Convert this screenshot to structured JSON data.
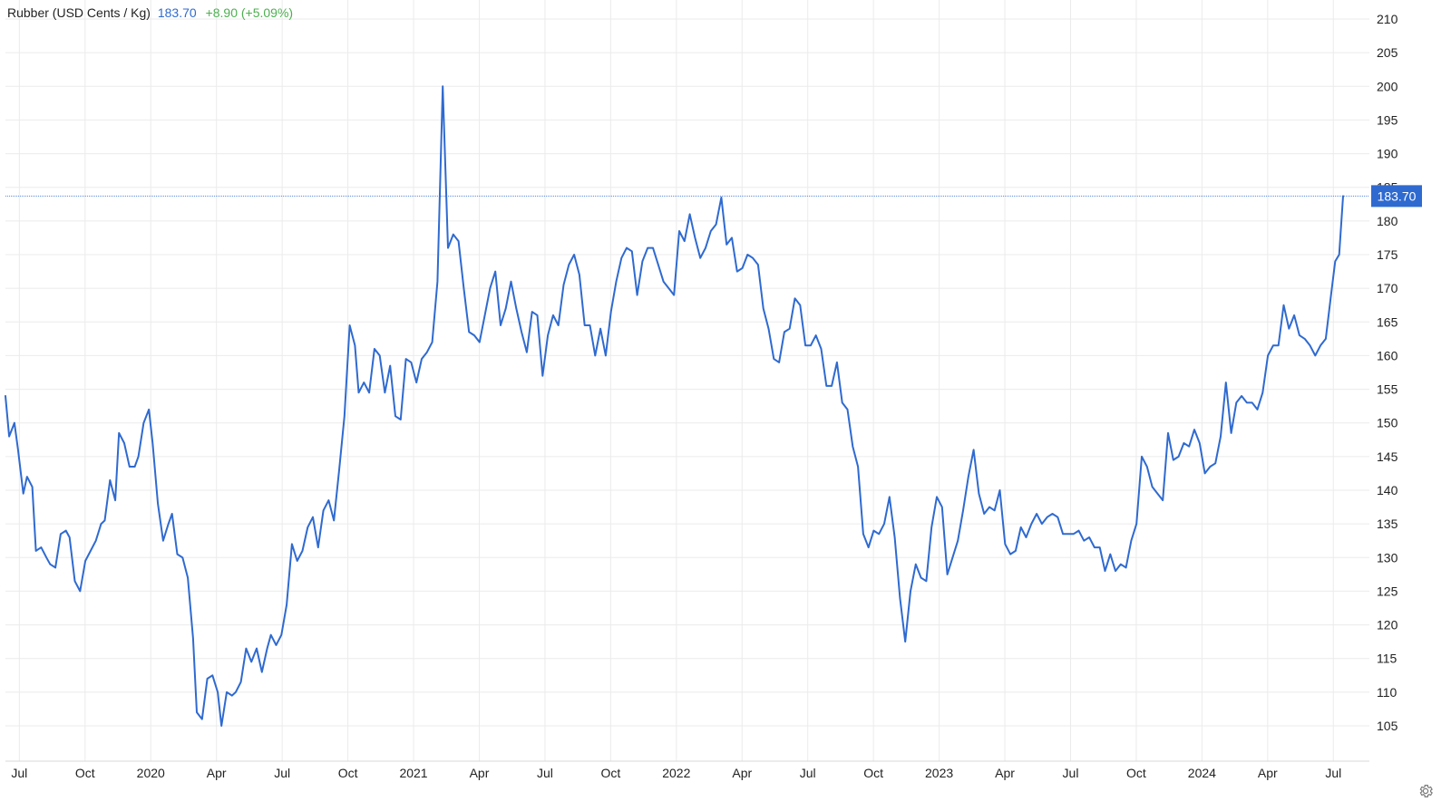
{
  "header": {
    "name": "Rubber (USD Cents / Kg)",
    "price": "183.70",
    "change": "+8.90 (+5.09%)"
  },
  "colors": {
    "line": "#2f6ad0",
    "grid": "#ebebeb",
    "label_bg": "#2f6ad0",
    "change_positive": "#4caf50",
    "axis_text": "#222222"
  },
  "chart_data": {
    "type": "line",
    "title": "Rubber (USD Cents / Kg)",
    "xlabel": "",
    "ylabel": "",
    "ylim": [
      100,
      212
    ],
    "y_ticks": [
      105,
      110,
      115,
      120,
      125,
      130,
      135,
      140,
      145,
      150,
      155,
      160,
      165,
      170,
      175,
      180,
      185,
      190,
      195,
      200,
      205,
      210
    ],
    "x_ticks": [
      {
        "label": "Jul",
        "t": 2019.5
      },
      {
        "label": "Oct",
        "t": 2019.75
      },
      {
        "label": "2020",
        "t": 2020.0
      },
      {
        "label": "Apr",
        "t": 2020.25
      },
      {
        "label": "Jul",
        "t": 2020.5
      },
      {
        "label": "Oct",
        "t": 2020.75
      },
      {
        "label": "2021",
        "t": 2021.0
      },
      {
        "label": "Apr",
        "t": 2021.25
      },
      {
        "label": "Jul",
        "t": 2021.5
      },
      {
        "label": "Oct",
        "t": 2021.75
      },
      {
        "label": "2022",
        "t": 2022.0
      },
      {
        "label": "Apr",
        "t": 2022.25
      },
      {
        "label": "Jul",
        "t": 2022.5
      },
      {
        "label": "Oct",
        "t": 2022.75
      },
      {
        "label": "2023",
        "t": 2023.0
      },
      {
        "label": "Apr",
        "t": 2023.25
      },
      {
        "label": "Jul",
        "t": 2023.5
      },
      {
        "label": "Oct",
        "t": 2023.75
      },
      {
        "label": "2024",
        "t": 2024.0
      },
      {
        "label": "Apr",
        "t": 2024.25
      },
      {
        "label": "Jul",
        "t": 2024.5
      }
    ],
    "xlim": [
      2019.447,
      2024.537
    ],
    "last_value": 183.7,
    "last_value_label": "183.70",
    "grid": true,
    "series": [
      {
        "color": "#2f6ad0",
        "points": [
          [
            2019.447,
            154.0
          ],
          [
            2019.461,
            148.0
          ],
          [
            2019.481,
            150.0
          ],
          [
            2019.495,
            146.0
          ],
          [
            2019.515,
            139.5
          ],
          [
            2019.529,
            142.0
          ],
          [
            2019.549,
            140.5
          ],
          [
            2019.563,
            131.0
          ],
          [
            2019.583,
            131.5
          ],
          [
            2019.603,
            130.0
          ],
          [
            2019.617,
            129.0
          ],
          [
            2019.637,
            128.5
          ],
          [
            2019.657,
            133.5
          ],
          [
            2019.677,
            134.0
          ],
          [
            2019.691,
            133.0
          ],
          [
            2019.711,
            126.5
          ],
          [
            2019.731,
            125.0
          ],
          [
            2019.751,
            129.5
          ],
          [
            2019.771,
            131.0
          ],
          [
            2019.791,
            132.5
          ],
          [
            2019.811,
            135.0
          ],
          [
            2019.825,
            135.5
          ],
          [
            2019.845,
            141.5
          ],
          [
            2019.865,
            138.5
          ],
          [
            2019.879,
            148.5
          ],
          [
            2019.899,
            147.0
          ],
          [
            2019.919,
            143.5
          ],
          [
            2019.939,
            143.5
          ],
          [
            2019.953,
            145.0
          ],
          [
            2019.973,
            150.0
          ],
          [
            2019.993,
            152.0
          ],
          [
            2020.007,
            147.0
          ],
          [
            2020.027,
            138.0
          ],
          [
            2020.047,
            132.5
          ],
          [
            2020.067,
            135.0
          ],
          [
            2020.081,
            136.5
          ],
          [
            2020.101,
            130.5
          ],
          [
            2020.121,
            130.0
          ],
          [
            2020.141,
            127.0
          ],
          [
            2020.161,
            118.0
          ],
          [
            2020.175,
            107.0
          ],
          [
            2020.195,
            106.0
          ],
          [
            2020.215,
            112.0
          ],
          [
            2020.235,
            112.5
          ],
          [
            2020.255,
            110.0
          ],
          [
            2020.269,
            105.0
          ],
          [
            2020.289,
            110.0
          ],
          [
            2020.309,
            109.5
          ],
          [
            2020.323,
            110.0
          ],
          [
            2020.343,
            111.5
          ],
          [
            2020.363,
            116.5
          ],
          [
            2020.383,
            114.5
          ],
          [
            2020.403,
            116.5
          ],
          [
            2020.423,
            113.0
          ],
          [
            2020.443,
            116.5
          ],
          [
            2020.457,
            118.5
          ],
          [
            2020.477,
            117.0
          ],
          [
            2020.497,
            118.5
          ],
          [
            2020.517,
            123.0
          ],
          [
            2020.537,
            132.0
          ],
          [
            2020.557,
            129.5
          ],
          [
            2020.577,
            131.0
          ],
          [
            2020.597,
            134.5
          ],
          [
            2020.617,
            136.0
          ],
          [
            2020.637,
            131.5
          ],
          [
            2020.657,
            137.0
          ],
          [
            2020.677,
            138.5
          ],
          [
            2020.697,
            135.5
          ],
          [
            2020.717,
            143.0
          ],
          [
            2020.737,
            151.0
          ],
          [
            2020.757,
            164.5
          ],
          [
            2020.777,
            161.5
          ],
          [
            2020.791,
            154.5
          ],
          [
            2020.811,
            156.0
          ],
          [
            2020.831,
            154.5
          ],
          [
            2020.851,
            161.0
          ],
          [
            2020.871,
            160.0
          ],
          [
            2020.891,
            154.5
          ],
          [
            2020.911,
            158.5
          ],
          [
            2020.931,
            151.0
          ],
          [
            2020.951,
            150.5
          ],
          [
            2020.971,
            159.5
          ],
          [
            2020.991,
            159.0
          ],
          [
            2021.011,
            156.0
          ],
          [
            2021.031,
            159.5
          ],
          [
            2021.051,
            160.5
          ],
          [
            2021.071,
            162.0
          ],
          [
            2021.091,
            171.0
          ],
          [
            2021.111,
            200.0
          ],
          [
            2021.131,
            176.0
          ],
          [
            2021.151,
            178.0
          ],
          [
            2021.171,
            177.0
          ],
          [
            2021.191,
            170.0
          ],
          [
            2021.211,
            163.5
          ],
          [
            2021.231,
            163.0
          ],
          [
            2021.251,
            162.0
          ],
          [
            2021.271,
            166.0
          ],
          [
            2021.291,
            170.0
          ],
          [
            2021.311,
            172.5
          ],
          [
            2021.331,
            164.5
          ],
          [
            2021.351,
            167.0
          ],
          [
            2021.371,
            171.0
          ],
          [
            2021.391,
            167.0
          ],
          [
            2021.411,
            163.5
          ],
          [
            2021.431,
            160.5
          ],
          [
            2021.451,
            166.5
          ],
          [
            2021.471,
            166.0
          ],
          [
            2021.491,
            157.0
          ],
          [
            2021.511,
            163.0
          ],
          [
            2021.531,
            166.0
          ],
          [
            2021.551,
            164.5
          ],
          [
            2021.571,
            170.5
          ],
          [
            2021.591,
            173.5
          ],
          [
            2021.611,
            175.0
          ],
          [
            2021.631,
            172.0
          ],
          [
            2021.651,
            164.5
          ],
          [
            2021.671,
            164.5
          ],
          [
            2021.691,
            160.0
          ],
          [
            2021.711,
            164.0
          ],
          [
            2021.731,
            160.0
          ],
          [
            2021.751,
            166.5
          ],
          [
            2021.771,
            171.0
          ],
          [
            2021.791,
            174.5
          ],
          [
            2021.811,
            176.0
          ],
          [
            2021.831,
            175.5
          ],
          [
            2021.851,
            169.0
          ],
          [
            2021.871,
            174.0
          ],
          [
            2021.891,
            176.0
          ],
          [
            2021.911,
            176.0
          ],
          [
            2021.931,
            173.5
          ],
          [
            2021.951,
            171.0
          ],
          [
            2021.971,
            170.0
          ],
          [
            2021.991,
            169.0
          ],
          [
            2022.011,
            178.5
          ],
          [
            2022.031,
            177.0
          ],
          [
            2022.051,
            181.0
          ],
          [
            2022.071,
            177.5
          ],
          [
            2022.091,
            174.5
          ],
          [
            2022.111,
            176.0
          ],
          [
            2022.131,
            178.5
          ],
          [
            2022.151,
            179.5
          ],
          [
            2022.171,
            183.5
          ],
          [
            2022.191,
            176.5
          ],
          [
            2022.211,
            177.5
          ],
          [
            2022.231,
            172.5
          ],
          [
            2022.251,
            173.0
          ],
          [
            2022.271,
            175.0
          ],
          [
            2022.291,
            174.5
          ],
          [
            2022.311,
            173.5
          ],
          [
            2022.331,
            167.0
          ],
          [
            2022.351,
            164.0
          ],
          [
            2022.371,
            159.5
          ],
          [
            2022.391,
            159.0
          ],
          [
            2022.411,
            163.5
          ],
          [
            2022.431,
            164.0
          ],
          [
            2022.451,
            168.5
          ],
          [
            2022.471,
            167.5
          ],
          [
            2022.491,
            161.5
          ],
          [
            2022.511,
            161.5
          ],
          [
            2022.531,
            163.0
          ],
          [
            2022.551,
            161.0
          ],
          [
            2022.571,
            155.5
          ],
          [
            2022.591,
            155.5
          ],
          [
            2022.611,
            159.0
          ],
          [
            2022.631,
            153.0
          ],
          [
            2022.651,
            152.0
          ],
          [
            2022.671,
            146.5
          ],
          [
            2022.691,
            143.5
          ],
          [
            2022.711,
            133.5
          ],
          [
            2022.731,
            131.5
          ],
          [
            2022.751,
            134.0
          ],
          [
            2022.771,
            133.5
          ],
          [
            2022.791,
            135.0
          ],
          [
            2022.811,
            139.0
          ],
          [
            2022.831,
            133.0
          ],
          [
            2022.851,
            124.0
          ],
          [
            2022.871,
            117.5
          ],
          [
            2022.891,
            125.0
          ],
          [
            2022.911,
            129.0
          ],
          [
            2022.931,
            127.0
          ],
          [
            2022.951,
            126.5
          ],
          [
            2022.971,
            134.5
          ],
          [
            2022.991,
            139.0
          ],
          [
            2023.011,
            137.5
          ],
          [
            2023.031,
            127.5
          ],
          [
            2023.051,
            130.0
          ],
          [
            2023.071,
            132.5
          ],
          [
            2023.091,
            137.0
          ],
          [
            2023.111,
            142.0
          ],
          [
            2023.131,
            146.0
          ],
          [
            2023.151,
            139.5
          ],
          [
            2023.171,
            136.5
          ],
          [
            2023.191,
            137.5
          ],
          [
            2023.211,
            137.0
          ],
          [
            2023.231,
            140.0
          ],
          [
            2023.251,
            132.0
          ],
          [
            2023.271,
            130.5
          ],
          [
            2023.291,
            131.0
          ],
          [
            2023.311,
            134.5
          ],
          [
            2023.331,
            133.0
          ],
          [
            2023.351,
            135.0
          ],
          [
            2023.371,
            136.5
          ],
          [
            2023.391,
            135.0
          ],
          [
            2023.411,
            136.0
          ],
          [
            2023.431,
            136.5
          ],
          [
            2023.451,
            136.0
          ],
          [
            2023.471,
            133.5
          ],
          [
            2023.491,
            133.5
          ],
          [
            2023.511,
            133.5
          ],
          [
            2023.531,
            134.0
          ],
          [
            2023.551,
            132.5
          ],
          [
            2023.571,
            133.0
          ],
          [
            2023.591,
            131.5
          ],
          [
            2023.611,
            131.5
          ],
          [
            2023.631,
            128.0
          ],
          [
            2023.651,
            130.5
          ],
          [
            2023.671,
            128.0
          ],
          [
            2023.691,
            129.0
          ],
          [
            2023.711,
            128.5
          ],
          [
            2023.731,
            132.5
          ],
          [
            2023.751,
            135.0
          ],
          [
            2023.771,
            145.0
          ],
          [
            2023.791,
            143.5
          ],
          [
            2023.811,
            140.5
          ],
          [
            2023.831,
            139.5
          ],
          [
            2023.851,
            138.5
          ],
          [
            2023.871,
            148.5
          ],
          [
            2023.891,
            144.5
          ],
          [
            2023.911,
            145.0
          ],
          [
            2023.931,
            147.0
          ],
          [
            2023.951,
            146.5
          ],
          [
            2023.971,
            149.0
          ],
          [
            2023.991,
            147.0
          ],
          [
            2024.011,
            142.5
          ],
          [
            2024.031,
            143.5
          ],
          [
            2024.051,
            144.0
          ],
          [
            2024.071,
            148.0
          ],
          [
            2024.091,
            156.0
          ],
          [
            2024.111,
            148.5
          ],
          [
            2024.131,
            153.0
          ],
          [
            2024.151,
            154.0
          ],
          [
            2024.171,
            153.0
          ],
          [
            2024.191,
            153.0
          ],
          [
            2024.211,
            152.0
          ],
          [
            2024.231,
            154.5
          ],
          [
            2024.251,
            160.0
          ],
          [
            2024.271,
            161.5
          ],
          [
            2024.291,
            161.5
          ],
          [
            2024.311,
            167.5
          ],
          [
            2024.331,
            164.0
          ],
          [
            2024.351,
            166.0
          ],
          [
            2024.371,
            163.0
          ],
          [
            2024.391,
            162.5
          ],
          [
            2024.411,
            161.5
          ],
          [
            2024.431,
            160.0
          ],
          [
            2024.451,
            161.5
          ],
          [
            2024.471,
            162.5
          ],
          [
            2024.491,
            169.0
          ],
          [
            2024.507,
            174.0
          ],
          [
            2024.522,
            175.0
          ],
          [
            2024.537,
            183.7
          ]
        ]
      }
    ]
  }
}
